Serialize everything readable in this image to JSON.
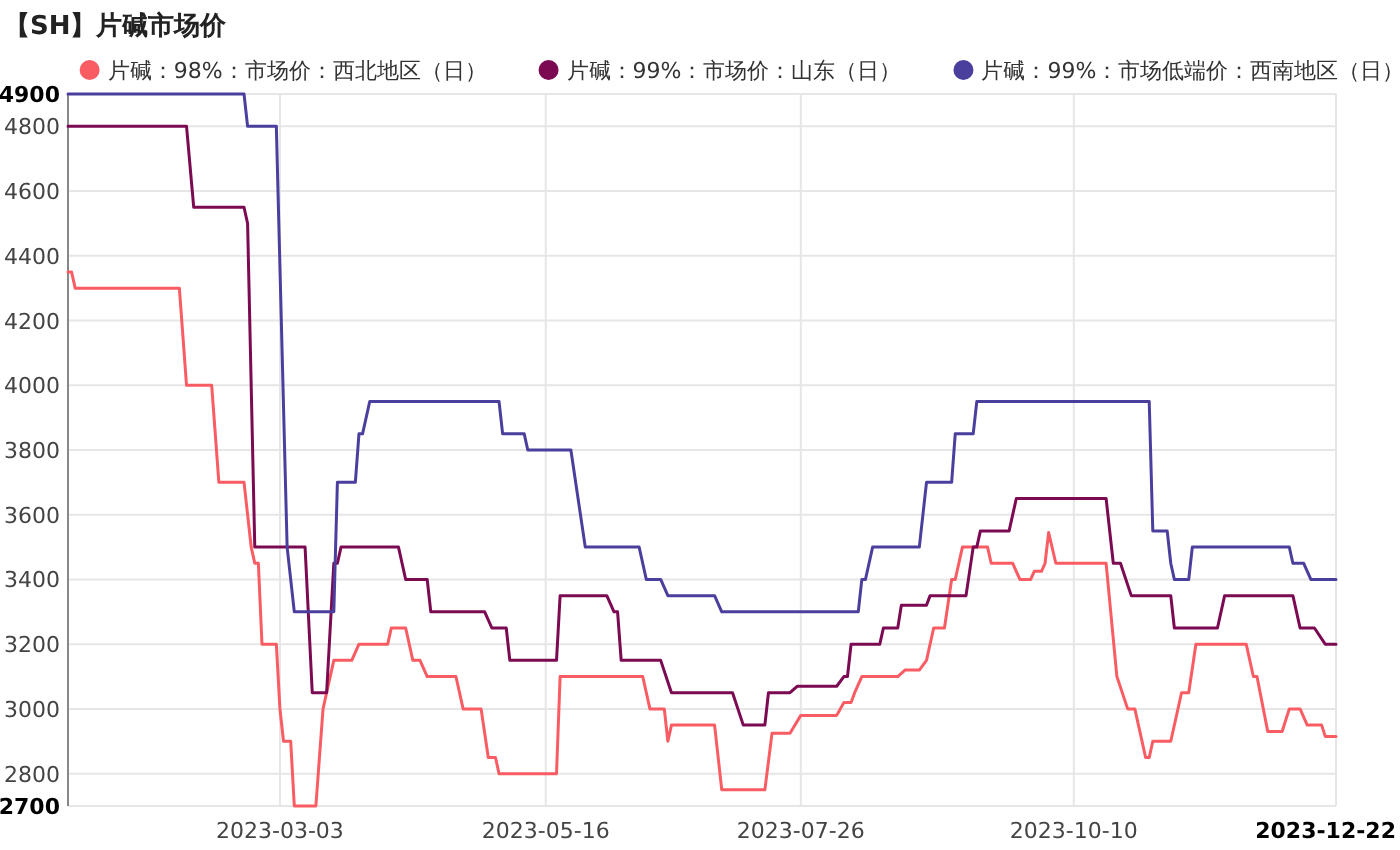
{
  "chart_data": {
    "type": "line",
    "title": "【SH】片碱市场价",
    "legend": "top",
    "grid": true,
    "xlim": [
      "2023-01-03",
      "2023-12-22"
    ],
    "xticks": [
      "2023-03-03",
      "2023-05-16",
      "2023-07-26",
      "2023-10-10",
      "2023-12-22"
    ],
    "ylim": [
      2700,
      4900
    ],
    "yticks": [
      2700,
      2800,
      3000,
      3200,
      3400,
      3600,
      3800,
      4000,
      4200,
      4400,
      4600,
      4800,
      4900
    ],
    "series": [
      {
        "name": "片碱：98%：市场价：西北地区（日）",
        "color": "#fa5c64",
        "x": [
          "2023-01-03",
          "2023-01-04",
          "2023-01-05",
          "2023-02-03",
          "2023-02-05",
          "2023-02-12",
          "2023-02-14",
          "2023-02-21",
          "2023-02-23",
          "2023-02-24",
          "2023-02-25",
          "2023-02-26",
          "2023-03-02",
          "2023-03-03",
          "2023-03-04",
          "2023-03-06",
          "2023-03-07",
          "2023-03-13",
          "2023-03-15",
          "2023-03-16",
          "2023-03-18",
          "2023-03-23",
          "2023-03-25",
          "2023-04-02",
          "2023-04-03",
          "2023-04-07",
          "2023-04-09",
          "2023-04-11",
          "2023-04-13",
          "2023-04-21",
          "2023-04-23",
          "2023-04-28",
          "2023-04-30",
          "2023-05-02",
          "2023-05-03",
          "2023-05-19",
          "2023-05-20",
          "2023-06-12",
          "2023-06-14",
          "2023-06-18",
          "2023-06-19",
          "2023-06-20",
          "2023-07-02",
          "2023-07-04",
          "2023-07-16",
          "2023-07-18",
          "2023-07-23",
          "2023-07-26",
          "2023-08-05",
          "2023-08-07",
          "2023-08-09",
          "2023-08-10",
          "2023-08-12",
          "2023-08-22",
          "2023-08-24",
          "2023-08-28",
          "2023-08-30",
          "2023-09-01",
          "2023-09-04",
          "2023-09-06",
          "2023-09-07",
          "2023-09-09",
          "2023-09-16",
          "2023-09-17",
          "2023-09-23",
          "2023-09-25",
          "2023-09-28",
          "2023-09-29",
          "2023-10-01",
          "2023-10-02",
          "2023-10-03",
          "2023-10-05",
          "2023-10-19",
          "2023-10-22",
          "2023-10-25",
          "2023-10-27",
          "2023-10-30",
          "2023-10-31",
          "2023-11-01",
          "2023-11-06",
          "2023-11-09",
          "2023-11-11",
          "2023-11-13",
          "2023-11-27",
          "2023-11-29",
          "2023-11-30",
          "2023-12-03",
          "2023-12-07",
          "2023-12-09",
          "2023-12-12",
          "2023-12-14",
          "2023-12-18",
          "2023-12-19",
          "2023-12-22"
        ],
        "values": [
          4350,
          4350,
          4300,
          4300,
          4000,
          4000,
          3700,
          3700,
          3500,
          3450,
          3450,
          3200,
          3200,
          3000,
          2900,
          2900,
          2700,
          2700,
          3000,
          3050,
          3150,
          3150,
          3200,
          3200,
          3250,
          3250,
          3150,
          3150,
          3100,
          3100,
          3000,
          3000,
          2850,
          2850,
          2800,
          2800,
          3100,
          3100,
          3000,
          3000,
          2900,
          2950,
          2950,
          2750,
          2750,
          2925,
          2925,
          2980,
          2980,
          3020,
          3020,
          3050,
          3100,
          3100,
          3120,
          3120,
          3150,
          3250,
          3250,
          3400,
          3400,
          3500,
          3500,
          3450,
          3450,
          3400,
          3400,
          3425,
          3425,
          3450,
          3545,
          3450,
          3450,
          3100,
          3000,
          3000,
          2850,
          2850,
          2900,
          2900,
          3050,
          3050,
          3200,
          3200,
          3100,
          3100,
          2930,
          2930,
          3000,
          3000,
          2950,
          2950,
          2915,
          2915
        ]
      },
      {
        "name": "片碱：99%：市场价：山东（日）",
        "color": "#7b0a52",
        "x": [
          "2023-01-03",
          "2023-02-05",
          "2023-02-07",
          "2023-02-21",
          "2023-02-22",
          "2023-02-24",
          "2023-03-10",
          "2023-03-12",
          "2023-03-16",
          "2023-03-18",
          "2023-03-19",
          "2023-03-20",
          "2023-04-05",
          "2023-04-07",
          "2023-04-13",
          "2023-04-14",
          "2023-04-29",
          "2023-05-01",
          "2023-05-05",
          "2023-05-06",
          "2023-05-19",
          "2023-05-20",
          "2023-06-02",
          "2023-06-04",
          "2023-06-05",
          "2023-06-06",
          "2023-06-17",
          "2023-06-20",
          "2023-07-07",
          "2023-07-10",
          "2023-07-16",
          "2023-07-17",
          "2023-07-23",
          "2023-07-25",
          "2023-08-05",
          "2023-08-07",
          "2023-08-08",
          "2023-08-09",
          "2023-08-17",
          "2023-08-18",
          "2023-08-22",
          "2023-08-23",
          "2023-08-30",
          "2023-08-31",
          "2023-09-10",
          "2023-09-12",
          "2023-09-13",
          "2023-09-14",
          "2023-09-22",
          "2023-09-24",
          "2023-10-19",
          "2023-10-21",
          "2023-10-23",
          "2023-10-26",
          "2023-11-06",
          "2023-11-07",
          "2023-11-19",
          "2023-11-21",
          "2023-12-10",
          "2023-12-12",
          "2023-12-16",
          "2023-12-19",
          "2023-12-22"
        ],
        "values": [
          4800,
          4800,
          4550,
          4550,
          4500,
          3500,
          3500,
          3050,
          3050,
          3450,
          3450,
          3500,
          3500,
          3400,
          3400,
          3300,
          3300,
          3250,
          3250,
          3150,
          3150,
          3350,
          3350,
          3300,
          3300,
          3150,
          3150,
          3050,
          3050,
          2950,
          2950,
          3050,
          3050,
          3070,
          3070,
          3100,
          3100,
          3200,
          3200,
          3250,
          3250,
          3320,
          3320,
          3350,
          3350,
          3500,
          3500,
          3550,
          3550,
          3650,
          3650,
          3450,
          3450,
          3350,
          3350,
          3250,
          3250,
          3350,
          3350,
          3250,
          3250,
          3200,
          3200
        ]
      },
      {
        "name": "片碱：99%：市场低端价：西南地区（日）",
        "color": "#4b3f9e",
        "x": [
          "2023-01-03",
          "2023-02-21",
          "2023-02-22",
          "2023-03-02",
          "2023-03-05",
          "2023-03-07",
          "2023-03-18",
          "2023-03-19",
          "2023-03-24",
          "2023-03-25",
          "2023-03-26",
          "2023-03-28",
          "2023-05-03",
          "2023-05-04",
          "2023-05-10",
          "2023-05-11",
          "2023-05-23",
          "2023-05-27",
          "2023-06-11",
          "2023-06-13",
          "2023-06-17",
          "2023-06-19",
          "2023-07-02",
          "2023-07-04",
          "2023-08-11",
          "2023-08-12",
          "2023-08-13",
          "2023-08-15",
          "2023-08-28",
          "2023-08-30",
          "2023-09-06",
          "2023-09-07",
          "2023-09-12",
          "2023-09-13",
          "2023-10-31",
          "2023-11-01",
          "2023-11-05",
          "2023-11-06",
          "2023-11-07",
          "2023-11-11",
          "2023-11-12",
          "2023-12-09",
          "2023-12-10",
          "2023-12-13",
          "2023-12-15",
          "2023-12-22"
        ],
        "values": [
          4900,
          4900,
          4800,
          4800,
          3500,
          3300,
          3300,
          3700,
          3700,
          3850,
          3850,
          3950,
          3950,
          3850,
          3850,
          3800,
          3800,
          3500,
          3500,
          3400,
          3400,
          3350,
          3350,
          3300,
          3300,
          3400,
          3400,
          3500,
          3500,
          3700,
          3700,
          3850,
          3850,
          3950,
          3950,
          3550,
          3550,
          3450,
          3400,
          3400,
          3500,
          3500,
          3450,
          3450,
          3400,
          3400
        ]
      }
    ]
  }
}
